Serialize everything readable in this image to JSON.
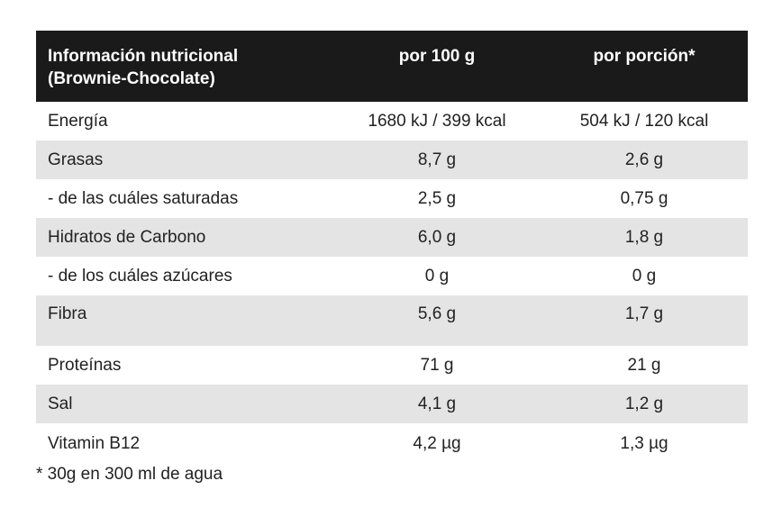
{
  "header": {
    "col1_line1": "Información nutricional",
    "col1_line2": "(Brownie-Chocolate)",
    "col2": "por 100 g",
    "col3": "por porción*"
  },
  "rows": [
    {
      "name": "Energía",
      "per100": "1680 kJ / 399 kcal",
      "serving": "504 kJ / 120 kcal"
    },
    {
      "name": "Grasas",
      "per100": "8,7 g",
      "serving": "2,6 g"
    },
    {
      "name": "- de las cuáles saturadas",
      "per100": "2,5 g",
      "serving": "0,75 g"
    },
    {
      "name": "Hidratos de Carbono",
      "per100": "6,0 g",
      "serving": "1,8 g"
    },
    {
      "name": "- de los cuáles azúcares",
      "per100": "0 g",
      "serving": "0 g"
    },
    {
      "name": "Fibra",
      "per100": "5,6 g",
      "serving": "1,7 g"
    },
    {
      "name": "Proteínas",
      "per100": "71 g",
      "serving": "21 g"
    },
    {
      "name": "Sal",
      "per100": "4,1 g",
      "serving": "1,2 g"
    },
    {
      "name": "Vitamin B12",
      "per100": "4,2  µg",
      "serving": "1,3 µg"
    }
  ],
  "footnote": "* 30g en 300 ml de agua"
}
